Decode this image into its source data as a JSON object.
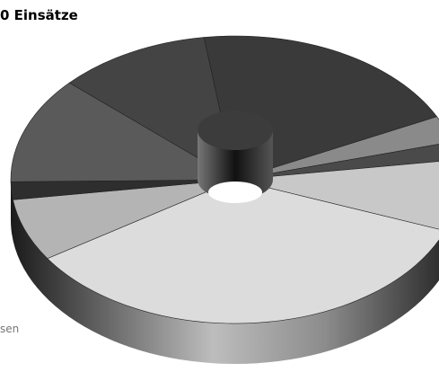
{
  "chart_data": {
    "type": "pie",
    "title": "0 Einsätze",
    "footnote": "sen",
    "values": [
      20,
      3,
      2,
      8,
      35,
      7,
      2,
      12,
      11
    ],
    "colors": [
      "#3a3a3a",
      "#8a8a8a",
      "#4a4a4a",
      "#c8c8c8",
      "#dcdcdc",
      "#b4b4b4",
      "#2e2e2e",
      "#5a5a5a",
      "#444444"
    ]
  }
}
